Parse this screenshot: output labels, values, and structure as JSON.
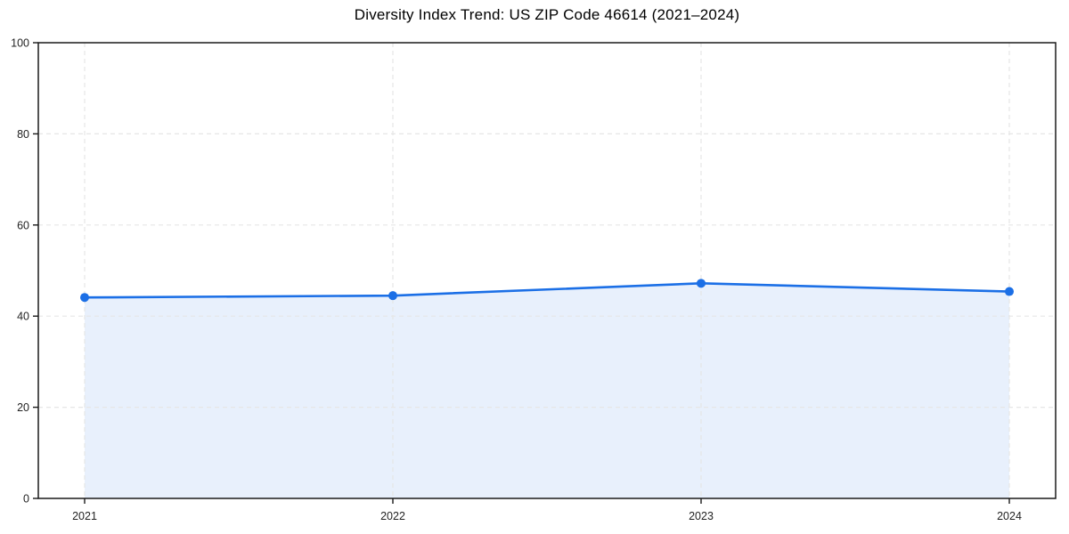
{
  "figure": {
    "background": "#ffffff"
  },
  "chart_data": {
    "type": "area",
    "title": "Diversity Index Trend: US ZIP Code 46614 (2021–2024)",
    "categories": [
      "2021",
      "2022",
      "2023",
      "2024"
    ],
    "values": [
      44.1,
      44.5,
      47.2,
      45.4
    ],
    "xlabel": "",
    "ylabel": "",
    "ylim": [
      0,
      100
    ],
    "yticks": [
      0,
      20,
      40,
      60,
      80,
      100
    ],
    "grid": true,
    "grid_style": "dashed",
    "legend_position": "none",
    "colors": {
      "line": "#1b6fe6",
      "marker": "#1b6fe6",
      "fill": "rgba(27, 111, 230, 0.10)",
      "grid": "#e6e6e6",
      "spine": "#1a1a1a",
      "tick_label": "#222222",
      "title": "#000000"
    }
  }
}
